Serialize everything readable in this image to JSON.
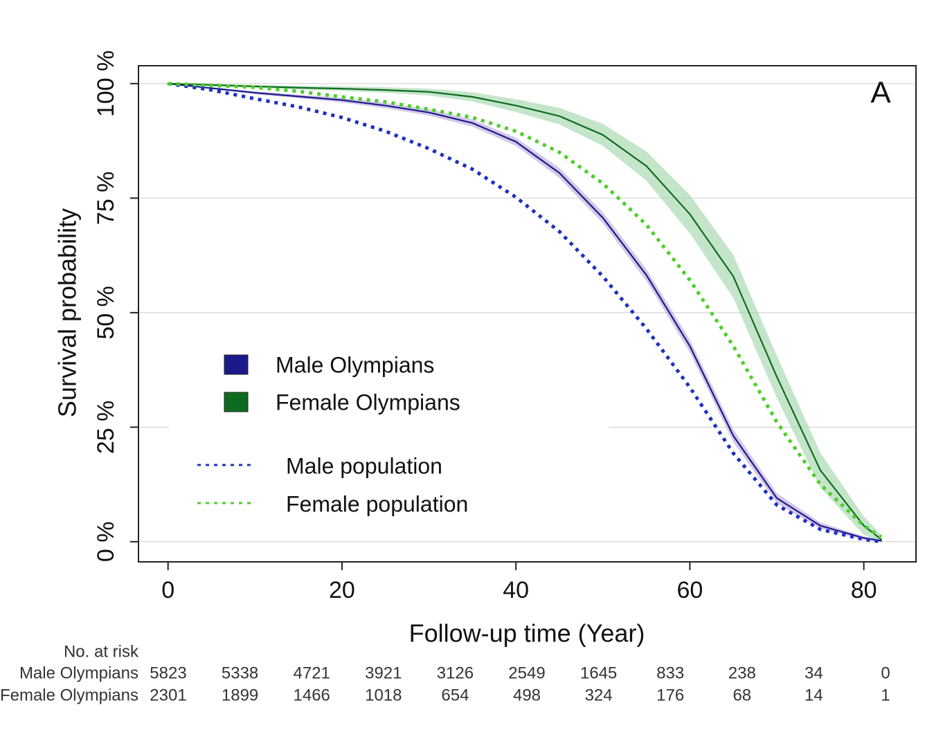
{
  "chart_data": {
    "type": "survival",
    "annotation": "A",
    "x_label": "Follow-up time (Year)",
    "y_label": "Survival probability",
    "xlim": [
      -3.4,
      86
    ],
    "ylim": [
      -4.4,
      103.9
    ],
    "xticks": [
      0,
      20,
      40,
      60,
      80
    ],
    "yticks": [
      {
        "value": 0,
        "label": "0 %"
      },
      {
        "value": 25,
        "label": "25 %"
      },
      {
        "value": 50,
        "label": "50 %"
      },
      {
        "value": 75,
        "label": "75 %"
      },
      {
        "value": 100,
        "label": "100 %"
      }
    ],
    "grid": true,
    "x": [
      0,
      5,
      10,
      15,
      20,
      25,
      30,
      35,
      40,
      45,
      50,
      55,
      60,
      65,
      70,
      75,
      80,
      82
    ],
    "series": [
      {
        "name": "Male Olympians",
        "color": "#1a1a8c",
        "style": "solid",
        "band_color": "#b9a5d8",
        "values": [
          100,
          99,
          98,
          97.2,
          96.4,
          95.2,
          93.7,
          91.4,
          87.3,
          80.5,
          70.7,
          58.2,
          42.7,
          23.1,
          9.5,
          3.5,
          0.8,
          0.2
        ],
        "band": {
          "lower": [
            100,
            98.8,
            97.7,
            96.8,
            95.9,
            94.6,
            93,
            90.6,
            86.4,
            79.4,
            69.5,
            56.9,
            41.3,
            21.7,
            8.4,
            2.8,
            0.4,
            0
          ],
          "upper": [
            100,
            99.2,
            98.3,
            97.6,
            96.9,
            95.8,
            94.4,
            92.2,
            88.2,
            81.6,
            71.9,
            59.5,
            44.1,
            24.5,
            10.6,
            4.2,
            1.2,
            0.5
          ]
        }
      },
      {
        "name": "Female Olympians",
        "color": "#0d6b1f",
        "style": "solid",
        "band_color": "#9fd4a8",
        "values": [
          100,
          99.7,
          99.4,
          99.1,
          98.9,
          98.6,
          98.2,
          97.1,
          95.2,
          92.9,
          88.8,
          82,
          71.5,
          57.9,
          36,
          15.6,
          3.5,
          0.5
        ],
        "band": {
          "lower": [
            100,
            99.5,
            99.1,
            98.7,
            98.4,
            98,
            97.4,
            96.1,
            93.8,
            91.1,
            86.4,
            78.8,
            67.3,
            53.2,
            31.4,
            11.8,
            1.5,
            0
          ],
          "upper": [
            100,
            99.9,
            99.7,
            99.5,
            99.4,
            99.2,
            98.9,
            98.1,
            96.6,
            94.7,
            91.2,
            85.2,
            75.7,
            62.6,
            40.6,
            19.4,
            5.5,
            1.5
          ]
        }
      },
      {
        "name": "Male population",
        "color": "#1f2fc0",
        "style": "dotted",
        "values": [
          100,
          98.6,
          96.7,
          94.9,
          92.6,
          89.6,
          85.8,
          81.3,
          75.2,
          67.7,
          57.9,
          46.5,
          33.7,
          19.3,
          8,
          2.7,
          0.5,
          0
        ]
      },
      {
        "name": "Female population",
        "color": "#4ccf2b",
        "style": "dotted",
        "values": [
          100,
          99.6,
          99.2,
          98.3,
          97.1,
          96,
          94.4,
          92.6,
          89.6,
          85,
          78.2,
          69.2,
          57.1,
          42.7,
          26.1,
          12.5,
          3.5,
          1
        ]
      }
    ],
    "risk_table": {
      "title": "No. at risk",
      "rows": [
        {
          "name": "Male Olympians",
          "values": [
            5823,
            5338,
            4721,
            3921,
            3126,
            2549,
            1645,
            833,
            238,
            34,
            0
          ]
        },
        {
          "name": "Female Olympians",
          "values": [
            2301,
            1899,
            1466,
            1018,
            654,
            498,
            324,
            176,
            68,
            14,
            1
          ]
        }
      ]
    }
  }
}
